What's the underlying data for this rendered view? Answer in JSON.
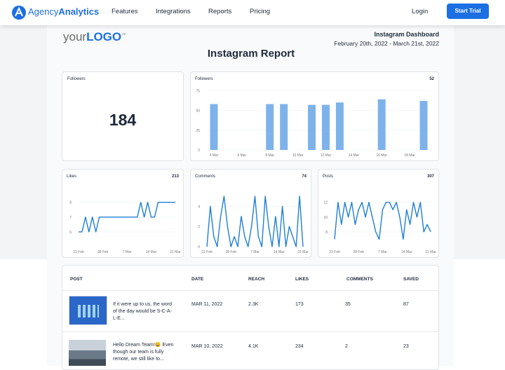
{
  "nav": {
    "brand_light": "Agency",
    "brand_bold": "Analytics",
    "links": [
      "Features",
      "Integrations",
      "Reports",
      "Pricing"
    ],
    "login": "Login",
    "cta": "Start Trial"
  },
  "report": {
    "logo_prefix": "your",
    "logo_main": "LOGO",
    "logo_mark": "™",
    "dashboard": "Instagram Dashboard",
    "date_range": "February 20th, 2022 - March 21st, 2022",
    "title": "Instagram Report"
  },
  "kpi": {
    "title": "Followers",
    "value": 184
  },
  "chart_data": [
    {
      "type": "bar",
      "title": "Followers",
      "total": 52,
      "color": "#7db3ea",
      "grid": true,
      "categories": [
        "4 Mar",
        null,
        "6 Mar",
        null,
        "8 Mar",
        null,
        "10 Mar",
        null,
        "12 Mar",
        null,
        "14 Mar",
        null,
        "16 Mar",
        null,
        "18 Mar",
        null
      ],
      "values": [
        58,
        null,
        null,
        null,
        58,
        58,
        null,
        57,
        57,
        60,
        null,
        null,
        64,
        null,
        null,
        62
      ],
      "ylim": [
        0,
        85
      ],
      "yticks": [
        0,
        25,
        50,
        75
      ]
    },
    {
      "type": "line",
      "title": "Likes",
      "total": 213,
      "color": "#1f7fd6",
      "grid": true,
      "categories": [
        "21 Feb",
        null,
        null,
        null,
        null,
        null,
        null,
        "28 Feb",
        null,
        null,
        null,
        null,
        null,
        null,
        "7 Mar",
        null,
        null,
        null,
        null,
        null,
        null,
        "14 Mar",
        null,
        null,
        null,
        null,
        null,
        null,
        "21 Mar"
      ],
      "values": [
        6,
        6,
        7,
        6,
        7,
        6,
        7,
        7,
        7,
        7,
        7,
        7,
        7,
        7,
        7,
        7,
        7,
        7,
        8,
        7,
        8,
        7,
        7,
        8,
        8,
        8,
        8,
        8,
        8
      ],
      "ylim": [
        5,
        9.5
      ],
      "yticks": [
        6,
        7,
        8
      ]
    },
    {
      "type": "line",
      "title": "Comments",
      "total": 74,
      "color": "#1f7fd6",
      "grid": true,
      "categories": [
        "21 Feb",
        null,
        null,
        null,
        null,
        null,
        null,
        "28 Feb",
        null,
        null,
        null,
        null,
        null,
        null,
        "7 Mar",
        null,
        null,
        null,
        null,
        null,
        null,
        "14 Mar",
        null,
        null,
        null,
        null,
        null,
        null,
        "21 Mar"
      ],
      "values": [
        0,
        4,
        1,
        0,
        3,
        5,
        2,
        0,
        1,
        0,
        3,
        1,
        0,
        2,
        5,
        1,
        0,
        5,
        2,
        0,
        3,
        0,
        4,
        0,
        2,
        1,
        0,
        5,
        0
      ],
      "ylim": [
        0,
        6.6
      ],
      "yticks": [
        0,
        2,
        4
      ]
    },
    {
      "type": "line",
      "title": "Posts",
      "total": 307,
      "color": "#1f7fd6",
      "grid": true,
      "categories": [
        "21 Feb",
        null,
        null,
        null,
        null,
        null,
        null,
        "28 Feb",
        null,
        null,
        null,
        null,
        null,
        null,
        "7 Mar",
        null,
        null,
        null,
        null,
        null,
        null,
        "14 Mar",
        null,
        null,
        null,
        null,
        null,
        null,
        "21 Mar"
      ],
      "values": [
        7,
        12,
        9,
        12,
        10,
        12,
        9,
        11,
        12,
        10,
        12,
        10,
        8,
        7,
        11,
        12,
        12,
        11,
        12,
        10,
        7,
        11,
        9,
        12,
        10,
        12,
        8,
        9,
        8
      ],
      "ylim": [
        6,
        15
      ],
      "yticks": [
        8,
        10,
        12
      ]
    }
  ],
  "table": {
    "headers": [
      "POST",
      "DATE",
      "REACH",
      "LIKES",
      "COMMENTS",
      "SAVED"
    ],
    "rows": [
      [
        "If it were up to us, the word of the day would be S-C-A-L-E...",
        "MAR 11, 2022",
        "2.3K",
        173,
        35,
        87
      ],
      [
        "Hello Dream Team!😄 Even though our team is fully remote, we still like to...",
        "MAR 10, 2022",
        "4.1K",
        234,
        2,
        23
      ]
    ]
  }
}
